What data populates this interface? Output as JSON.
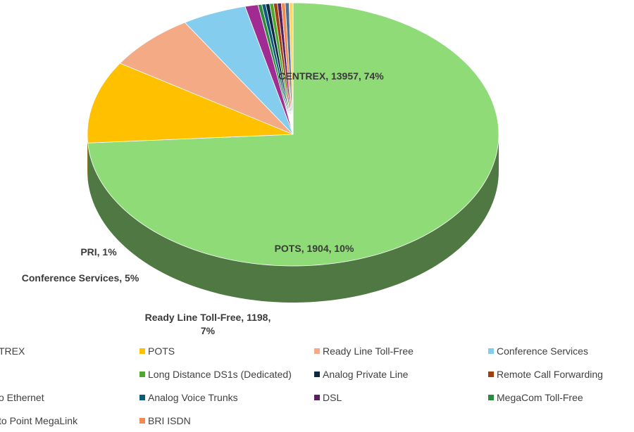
{
  "chart_data": {
    "type": "pie",
    "style": "3d",
    "title": "",
    "slices": [
      {
        "label": "CENTREX",
        "value": 13957,
        "percent": 74,
        "color": "#8FDB78"
      },
      {
        "label": "POTS",
        "value": 1904,
        "percent": 10,
        "color": "#FFC000"
      },
      {
        "label": "Ready Line Toll-Free",
        "value": 1198,
        "percent": 7,
        "color": "#F3AA85"
      },
      {
        "label": "Conference Services",
        "percent": 5,
        "color": "#84CDEE"
      },
      {
        "label": "PRI",
        "percent": 1,
        "color": "#A02B93"
      },
      {
        "label": "MegaCom Toll-Free",
        "color": "#2E8B3E"
      },
      {
        "label": "Analog Voice Trunks",
        "color": "#0E5A7A"
      },
      {
        "label": "Analog Private Line",
        "color": "#0B2A44"
      },
      {
        "label": "Long Distance DS1s (Dedicated)",
        "color": "#4EA72E"
      },
      {
        "label": "Remote Call Forwarding",
        "color": "#A0400F"
      },
      {
        "label": "DSL",
        "color": "#5A1F5E"
      },
      {
        "label": "BRI ISDN",
        "color": "#F08B55"
      },
      {
        "label": "Ethernet",
        "color": "#4F6F8F"
      },
      {
        "label": "Point to Point MegaLink",
        "color": "#FFD566"
      }
    ],
    "data_labels": [
      {
        "slice": "CENTREX",
        "text": "CENTREX, 13957, 74%"
      },
      {
        "slice": "POTS",
        "text": "POTS, 1904, 10%"
      },
      {
        "slice": "Ready Line Toll-Free",
        "text": "Ready Line Toll-Free, 1198,\n7%"
      },
      {
        "slice": "Conference Services",
        "text": "Conference Services, 5%"
      },
      {
        "slice": "PRI",
        "text": "PRI, 1%"
      }
    ],
    "legend_position": "bottom",
    "legend": [
      {
        "text": "TREX",
        "color": "#8FDB78"
      },
      {
        "text": "POTS",
        "color": "#FFC000"
      },
      {
        "text": "Ready Line Toll-Free",
        "color": "#F3AA85"
      },
      {
        "text": "Conference Services",
        "color": "#84CDEE"
      },
      {
        "text": "Long Distance DS1s (Dedicated)",
        "color": "#4EA72E"
      },
      {
        "text": "Analog Private Line",
        "color": "#0B2A44"
      },
      {
        "text": "Remote Call Forwarding",
        "color": "#A0400F"
      },
      {
        "text": "o Ethernet",
        "color": "#4F6F8F"
      },
      {
        "text": "Analog Voice Trunks",
        "color": "#0E5A7A"
      },
      {
        "text": "DSL",
        "color": "#5A1F5E"
      },
      {
        "text": "MegaCom Toll-Free",
        "color": "#2E8B3E"
      },
      {
        "text": "to Point MegaLink",
        "color": "#FFD566"
      },
      {
        "text": "BRI ISDN",
        "color": "#F08B55"
      }
    ]
  }
}
